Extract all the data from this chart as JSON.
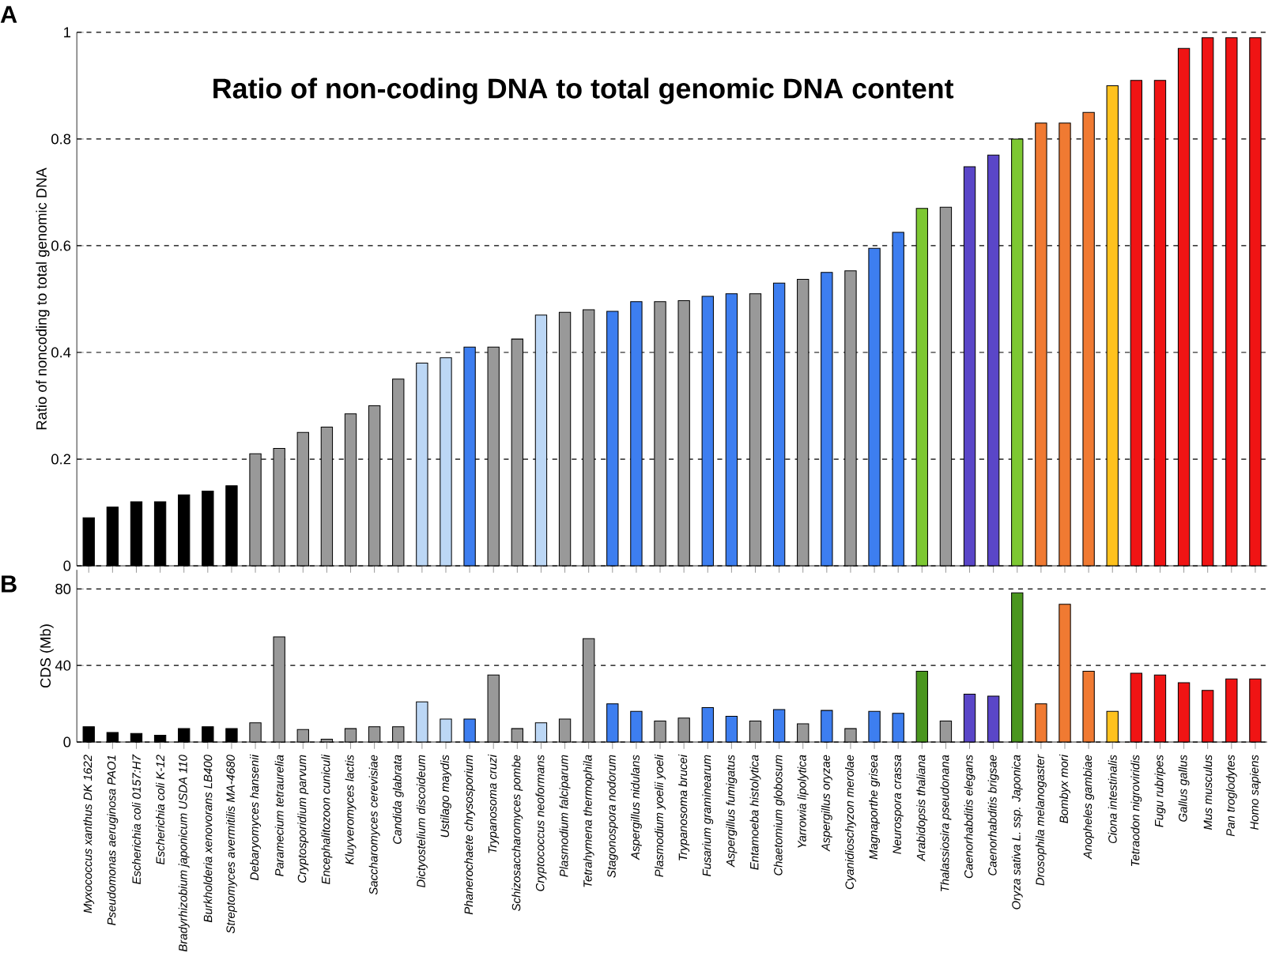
{
  "chart_data": [
    {
      "type": "bar",
      "title": "Ratio of non-coding DNA to total genomic DNA content",
      "ylabel": "Ratio of noncoding to total genomic DNA",
      "annotations": [
        "A"
      ],
      "tick_labels": "y",
      "grid": "y",
      "ylim": [
        0,
        1
      ],
      "yticks": [
        0,
        0.2,
        0.4,
        0.6,
        0.8,
        1
      ],
      "categories": [
        null,
        null,
        null,
        null,
        null,
        null,
        null,
        null,
        null,
        null,
        null,
        null,
        null,
        null,
        null,
        null,
        null,
        null,
        null,
        null,
        null,
        null,
        null,
        null,
        null,
        null,
        null,
        null,
        null,
        null,
        null,
        null,
        null,
        null,
        null,
        null,
        null,
        null,
        null,
        null,
        null,
        null,
        null,
        null,
        null,
        null,
        null,
        null,
        null,
        null
      ],
      "values": [
        0.09,
        0.11,
        0.12,
        0.12,
        0.133,
        0.14,
        0.15,
        0.21,
        0.22,
        0.25,
        0.26,
        0.285,
        0.3,
        0.35,
        0.38,
        0.39,
        0.41,
        0.41,
        0.425,
        0.47,
        0.475,
        0.48,
        0.477,
        0.495,
        0.495,
        0.497,
        0.505,
        0.51,
        0.51,
        0.53,
        0.537,
        0.55,
        0.553,
        0.595,
        0.625,
        0.67,
        0.672,
        0.748,
        0.77,
        0.8,
        0.83,
        0.83,
        0.85,
        0.9,
        0.91,
        0.91,
        0.97,
        0.99,
        0.99,
        0.99
      ],
      "colors": [
        "#000000",
        "#000000",
        "#000000",
        "#000000",
        "#000000",
        "#000000",
        "#000000",
        "#999999",
        "#999999",
        "#999999",
        "#999999",
        "#999999",
        "#999999",
        "#999999",
        "#bcd7f5",
        "#bcd7f5",
        "#3d7ef0",
        "#999999",
        "#999999",
        "#bcd7f5",
        "#999999",
        "#999999",
        "#3d7ef0",
        "#3d7ef0",
        "#999999",
        "#999999",
        "#3d7ef0",
        "#3d7ef0",
        "#999999",
        "#3d7ef0",
        "#999999",
        "#3d7ef0",
        "#999999",
        "#3d7ef0",
        "#3d7ef0",
        "#7dc832",
        "#999999",
        "#5a46c8",
        "#5a46c8",
        "#7dc832",
        "#f07a32",
        "#f07a32",
        "#f07a32",
        "#ffc21e",
        "#f01414",
        "#f01414",
        "#f01414",
        "#f01414",
        "#f01414",
        "#f01414"
      ]
    },
    {
      "type": "bar",
      "ylabel": "CDS (Mb)",
      "annotations": [
        "B"
      ],
      "grid": "y",
      "ylim": [
        0,
        90
      ],
      "yticks": [
        0,
        40,
        80
      ],
      "categories": [
        "Myxococcus xanthus DK 1622",
        "Pseudomonas aeruginosa PAO1",
        "Escherichia coli 0157:H7",
        "Escherichia coli K-12",
        "Bradyrhizobium japonicum USDA 110",
        "Burkholderia xenovorans LB400",
        "Streptomyces avermitilis MA-4680",
        "Debaryomyces hansenii",
        "Paramecium tetraurelia",
        "Cryptosporidium parvum",
        "Encephalitozoon cuniculi",
        "Kluyveromyces lactis",
        "Saccharomyces cerevisiae",
        "Candida glabrata",
        "Dictyostelium discoideum",
        "Ustilago maydis",
        "Phanerochaete chrysosporium",
        "Trypanosoma cruzi",
        "Schizosaccharomyces pombe",
        "Cryptococcus neoformans",
        "Plasmodium falciparum",
        "Tetrahymena thermophila",
        "Stagonospora nodorum",
        "Aspergillus nidulans",
        "Plasmodium yoelii yoeli",
        "Trypanosoma brucei",
        "Fusarium graminearum",
        "Aspergillus fumigatus",
        "Entamoeba histolytica",
        "Chaetomium globosum",
        "Yarrowia lipolytica",
        "Aspergillus oryzae",
        "Cyanidioschyzon merolae",
        "Magnaporthe grisea",
        "Neurospora crassa",
        "Arabidopsis thaliana",
        "Thalassiosira pseudonana",
        "Caenorhabditis elegans",
        "Caenorhabditis brigsae",
        "Oryza sativa L. ssp. Japonica",
        "Drosophila melanogaster",
        "Bombyx mori",
        "Anopheles gambiae",
        "Ciona intestinalis",
        "Tetraodon nigroviridis",
        "Fugu rubripes",
        "Gallus gallus",
        "Mus musculus",
        "Pan troglodytes",
        "Homo sapiens"
      ],
      "values": [
        8,
        5,
        4.5,
        3.5,
        7,
        8,
        7,
        10,
        55,
        6.5,
        1.5,
        7,
        8,
        8,
        21,
        12,
        12,
        35,
        7,
        10,
        12,
        54,
        20,
        16,
        11,
        12.5,
        18,
        13.5,
        11,
        17,
        9.5,
        16.5,
        7,
        16,
        15,
        37,
        11,
        25,
        24,
        78,
        20,
        72,
        37,
        16,
        36,
        35,
        31,
        27,
        33,
        33
      ],
      "colors": [
        "#000000",
        "#000000",
        "#000000",
        "#000000",
        "#000000",
        "#000000",
        "#000000",
        "#999999",
        "#999999",
        "#999999",
        "#999999",
        "#999999",
        "#999999",
        "#999999",
        "#bcd7f5",
        "#bcd7f5",
        "#3d7ef0",
        "#999999",
        "#999999",
        "#bcd7f5",
        "#999999",
        "#999999",
        "#3d7ef0",
        "#3d7ef0",
        "#999999",
        "#999999",
        "#3d7ef0",
        "#3d7ef0",
        "#999999",
        "#3d7ef0",
        "#999999",
        "#3d7ef0",
        "#999999",
        "#3d7ef0",
        "#3d7ef0",
        "#4a961e",
        "#999999",
        "#5a46c8",
        "#5a46c8",
        "#4a961e",
        "#f07a32",
        "#f07a32",
        "#f07a32",
        "#ffc21e",
        "#f01414",
        "#f01414",
        "#f01414",
        "#f01414",
        "#f01414",
        "#f01414"
      ]
    }
  ]
}
